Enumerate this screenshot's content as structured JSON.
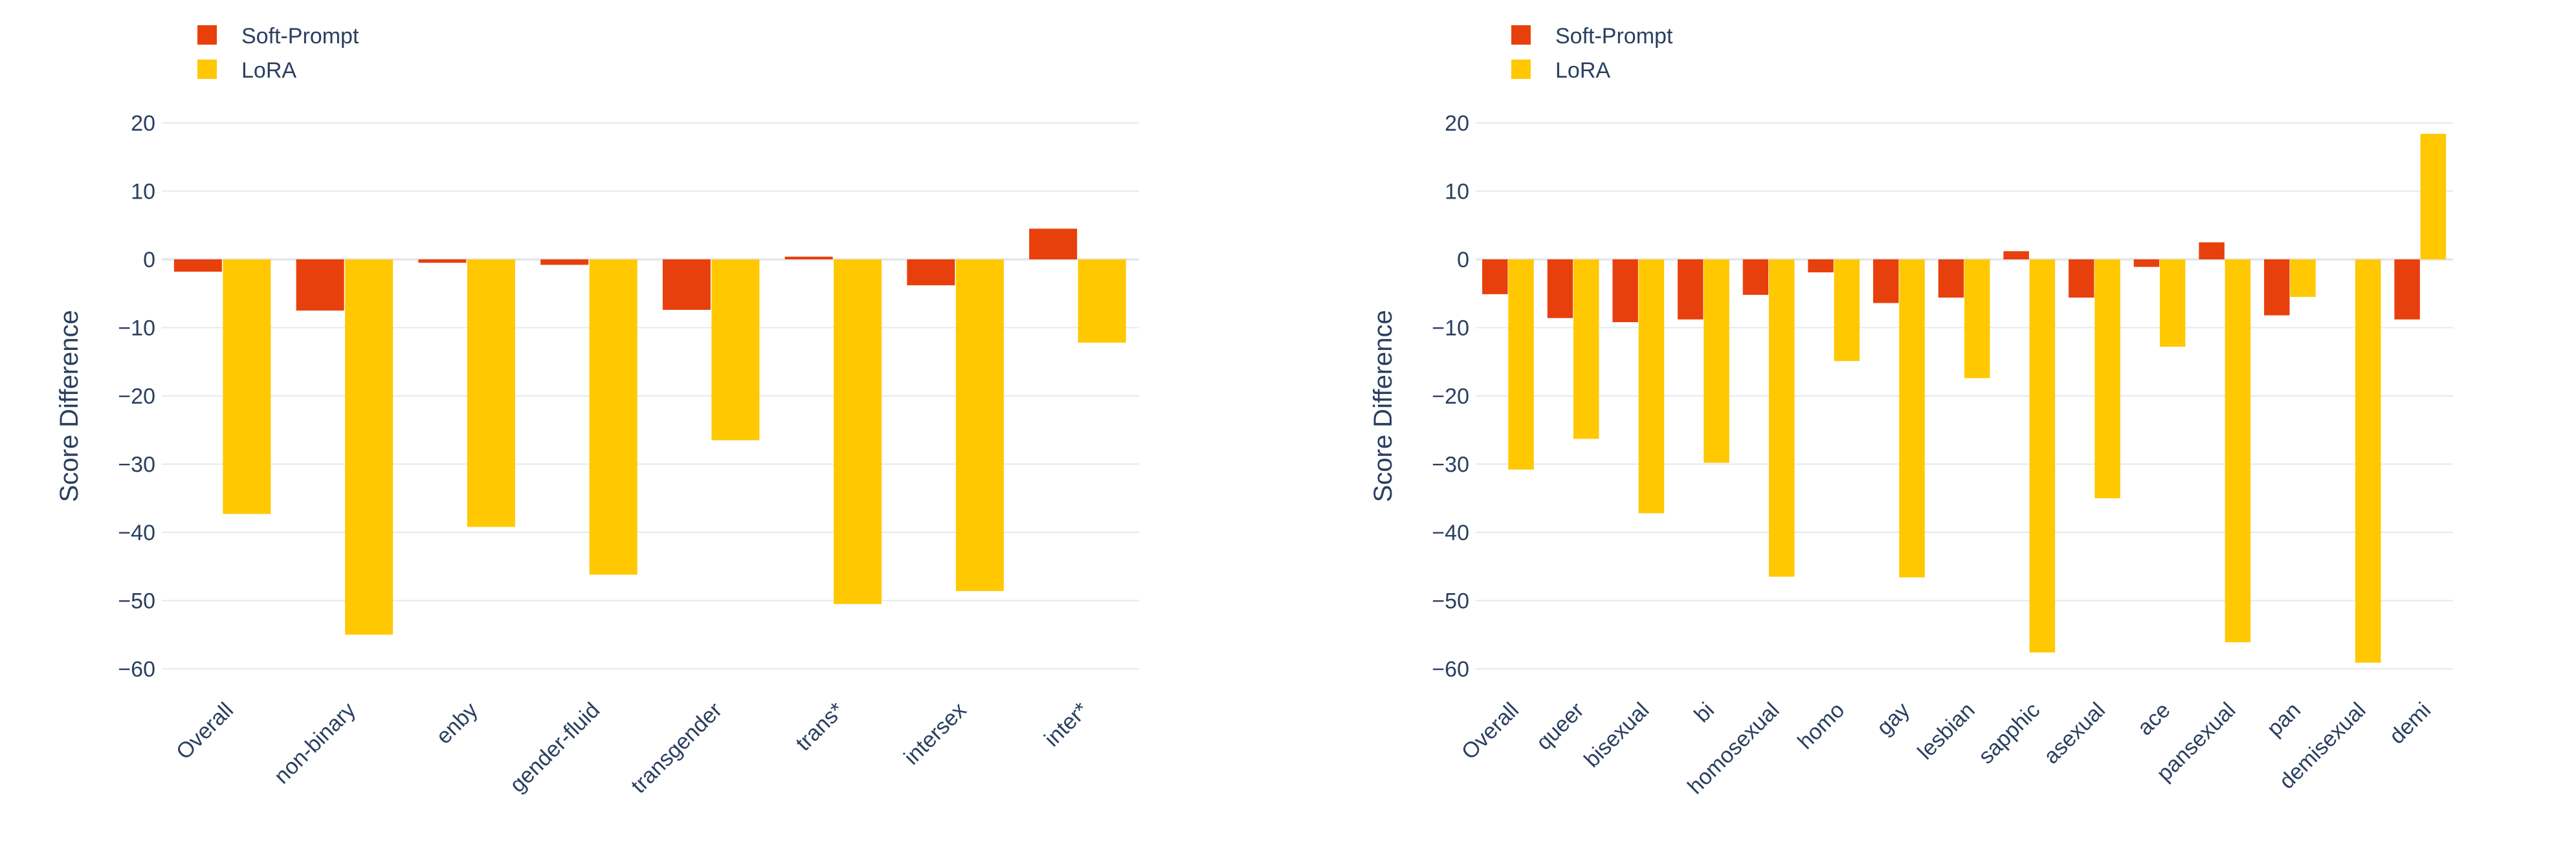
{
  "colors": {
    "soft_prompt": "#E8400C",
    "lora": "#FFC800",
    "grid": "#E5E9EE",
    "zero": "#E5E9EE",
    "text": "#2A3F5F"
  },
  "chart_data": [
    {
      "type": "bar",
      "ylabel": "Score Difference",
      "ylim": [
        -65,
        22
      ],
      "yticks": [
        20,
        10,
        0,
        -10,
        -20,
        -30,
        -40,
        -50,
        -60
      ],
      "ytick_labels": [
        "20",
        "10",
        "0",
        "−10",
        "−20",
        "−30",
        "−40",
        "−50",
        "−60"
      ],
      "legend": [
        "Soft-Prompt",
        "LoRA"
      ],
      "categories": [
        "Overall",
        "non-binary",
        "enby",
        "gender-fluid",
        "transgender",
        "trans*",
        "intersex",
        "inter*"
      ],
      "series": [
        {
          "name": "Soft-Prompt",
          "values": [
            -1.8,
            -7.5,
            -0.5,
            -0.8,
            -7.4,
            0.4,
            -3.8,
            4.5
          ]
        },
        {
          "name": "LoRA",
          "values": [
            -37.3,
            -55.0,
            -39.2,
            -46.2,
            -26.5,
            -50.5,
            -48.6,
            -12.2
          ]
        }
      ]
    },
    {
      "type": "bar",
      "ylabel": "Score Difference",
      "ylim": [
        -65,
        22
      ],
      "yticks": [
        20,
        10,
        0,
        -10,
        -20,
        -30,
        -40,
        -50,
        -60
      ],
      "ytick_labels": [
        "20",
        "10",
        "0",
        "−10",
        "−20",
        "−30",
        "−40",
        "−50",
        "−60"
      ],
      "legend": [
        "Soft-Prompt",
        "LoRA"
      ],
      "categories": [
        "Overall",
        "queer",
        "bisexual",
        "bi",
        "homosexual",
        "homo",
        "gay",
        "lesbian",
        "sapphic",
        "asexual",
        "ace",
        "pansexual",
        "pan",
        "demisexual",
        "demi"
      ],
      "series": [
        {
          "name": "Soft-Prompt",
          "values": [
            -5.1,
            -8.6,
            -9.2,
            -8.8,
            -5.2,
            -1.9,
            -6.4,
            -5.6,
            1.2,
            -5.6,
            -1.1,
            2.5,
            -8.2,
            0.0,
            -8.8
          ]
        },
        {
          "name": "LoRA",
          "values": [
            -30.8,
            -26.3,
            -37.2,
            -29.8,
            -46.5,
            -14.9,
            -46.6,
            -17.4,
            -57.6,
            -35.0,
            -12.8,
            -56.1,
            -5.5,
            -59.1,
            18.4
          ]
        }
      ]
    }
  ]
}
